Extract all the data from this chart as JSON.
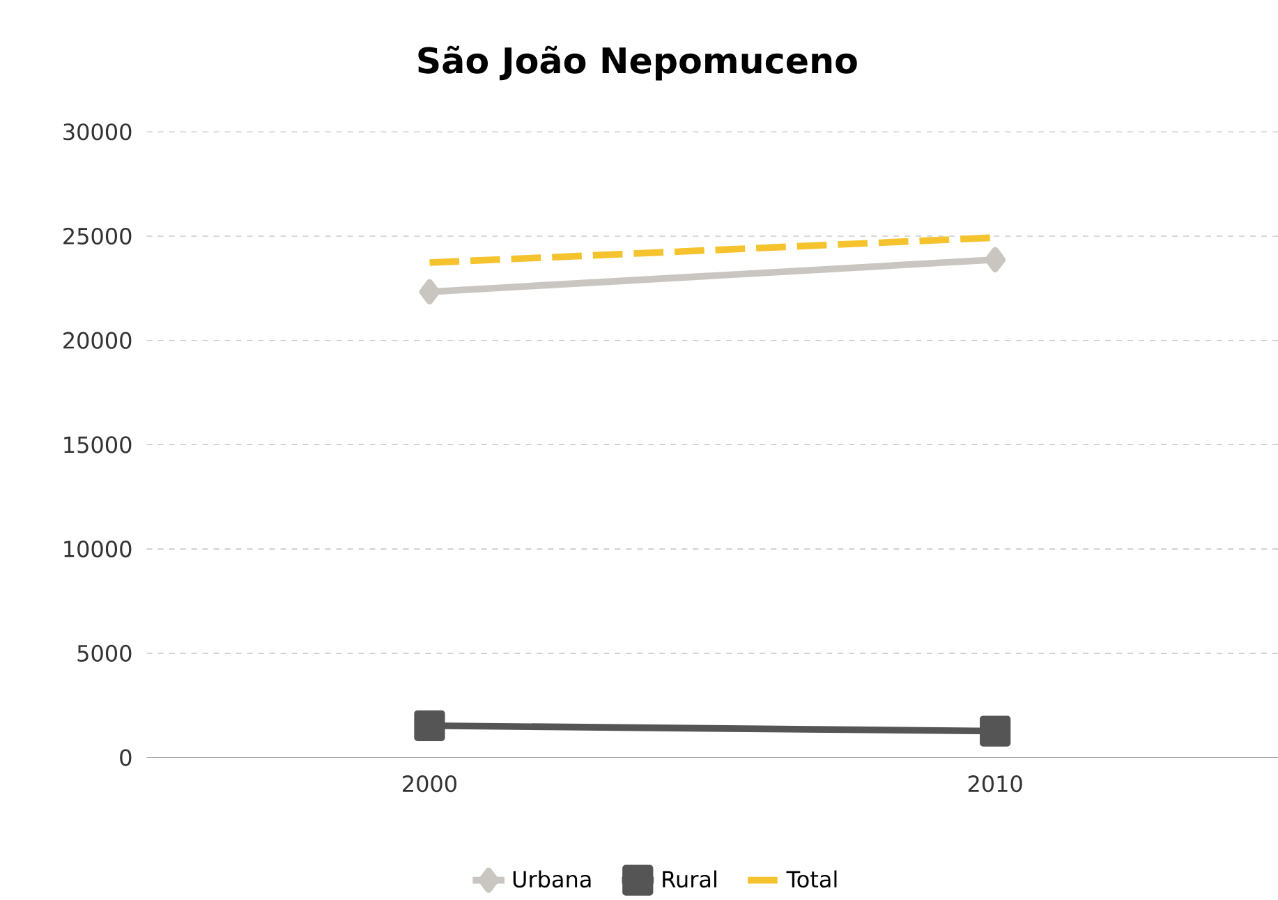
{
  "chart_data": {
    "type": "line",
    "title": "São João Nepomuceno",
    "categories": [
      "2000",
      "2010"
    ],
    "series": [
      {
        "name": "Urbana",
        "color": "#c9c5c1",
        "values": [
          22330,
          23870
        ],
        "marker": "diamond",
        "line_style": "solid"
      },
      {
        "name": "Rural",
        "color": "#555555",
        "values": [
          1530,
          1270
        ],
        "marker": "square",
        "line_style": "solid"
      },
      {
        "name": "Total",
        "color": "#f5c32e",
        "values": [
          23730,
          24930
        ],
        "marker": "none",
        "line_style": "dashed"
      }
    ],
    "ylim": [
      0,
      30000
    ],
    "yticks": [
      0,
      5000,
      10000,
      15000,
      20000,
      25000,
      30000
    ],
    "grid": "y",
    "legend": "bottom"
  }
}
